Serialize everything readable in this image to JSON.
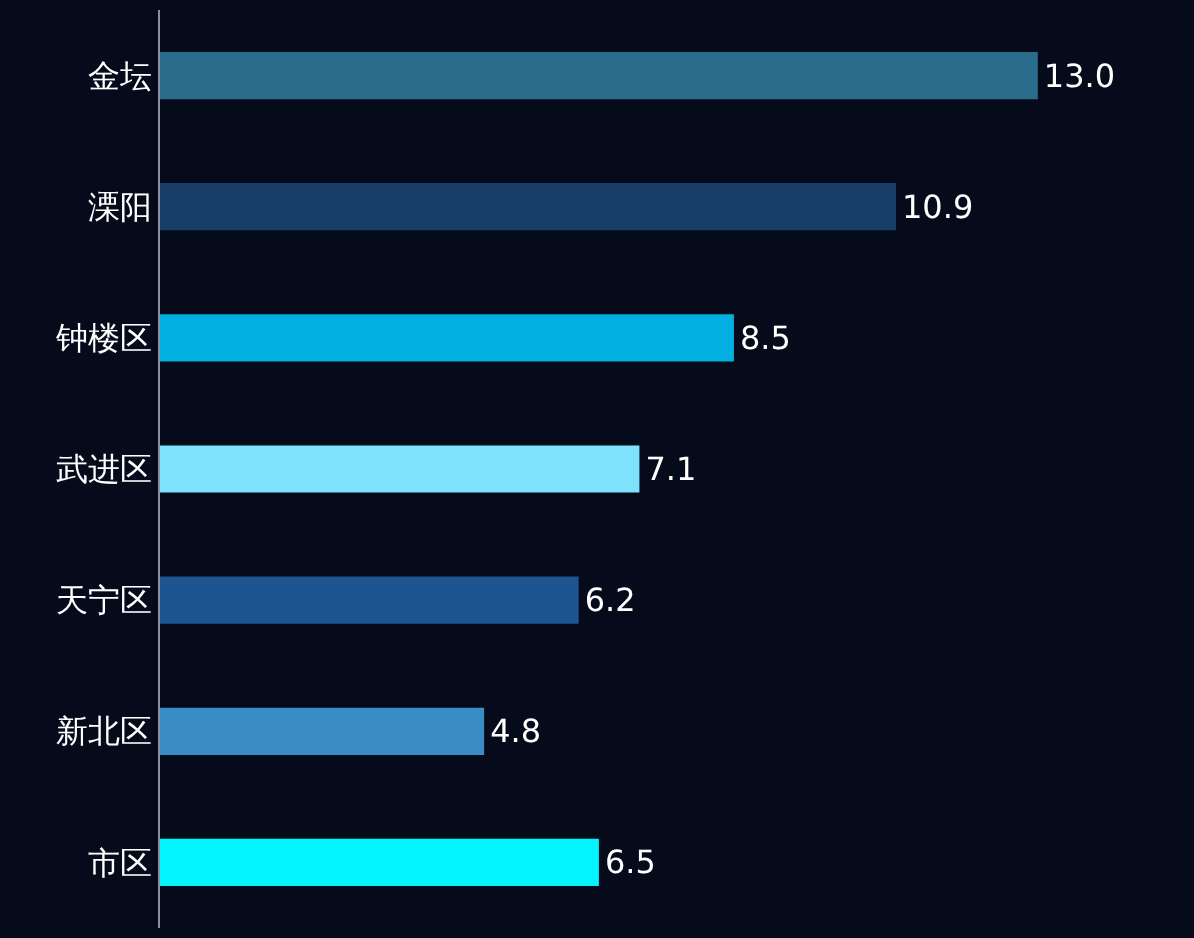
{
  "chart_data": {
    "type": "bar",
    "orientation": "horizontal",
    "categories": [
      "金坛",
      "溧阳",
      "钟楼区",
      "武进区",
      "天宁区",
      "新北区",
      "市区"
    ],
    "values": [
      13.0,
      10.9,
      8.5,
      7.1,
      6.2,
      4.8,
      6.5
    ],
    "colors": [
      "#2b6b8c",
      "#163e69",
      "#02afe0",
      "#7de3fd",
      "#1c5590",
      "#3a8cc5",
      "#00f5ff"
    ],
    "data_labels": true,
    "value_labels": [
      "13.0",
      "10.9",
      "8.5",
      "7.1",
      "6.2",
      "4.8",
      "6.5"
    ],
    "grid": false,
    "legend": false
  }
}
